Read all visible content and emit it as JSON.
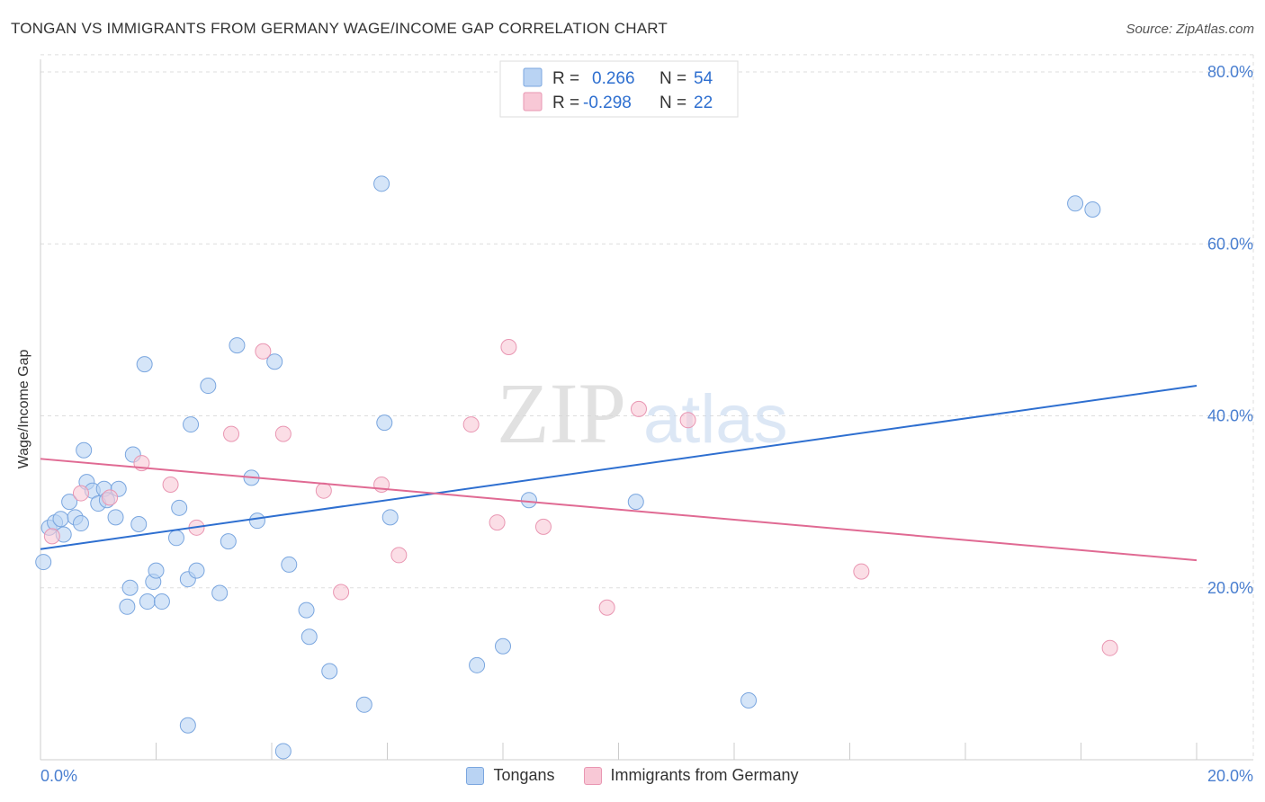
{
  "title": "TONGAN VS IMMIGRANTS FROM GERMANY WAGE/INCOME GAP CORRELATION CHART",
  "source": "Source: ZipAtlas.com",
  "watermark": {
    "zip": "ZIP",
    "atlas": "atlas"
  },
  "colors": {
    "blue_fill": "#b9d3f3",
    "blue_stroke": "#7aa6df",
    "blue_line": "#2e6fd0",
    "pink_fill": "#f8c8d6",
    "pink_stroke": "#e996b2",
    "pink_line": "#e06a93",
    "grid": "#dddddd",
    "axis_label": "#4a7fd0"
  },
  "stats_legend": [
    {
      "r_label": "R =",
      "r_value": "0.266",
      "n_label": "N =",
      "n_value": "54",
      "series": "Tongans"
    },
    {
      "r_label": "R =",
      "r_value": "-0.298",
      "n_label": "N =",
      "n_value": "22",
      "series": "Immigrants from Germany"
    }
  ],
  "chart_data": {
    "type": "scatter",
    "title": "TONGAN VS IMMIGRANTS FROM GERMANY WAGE/INCOME GAP CORRELATION CHART",
    "xlabel": "",
    "ylabel": "Wage/Income Gap",
    "xlim": [
      0,
      20
    ],
    "ylim": [
      0,
      82
    ],
    "x_tick_labels": [
      {
        "value": 0,
        "label": "0.0%"
      },
      {
        "value": 20,
        "label": "20.0%"
      }
    ],
    "y_tick_labels": [
      {
        "value": 20,
        "label": "20.0%"
      },
      {
        "value": 40,
        "label": "40.0%"
      },
      {
        "value": 60,
        "label": "60.0%"
      },
      {
        "value": 80,
        "label": "80.0%"
      }
    ],
    "x_minor_ticks": [
      0,
      2,
      4,
      6,
      8,
      10,
      12,
      14,
      16,
      18,
      20
    ],
    "grid": true,
    "legend_position": "bottom",
    "series": [
      {
        "name": "Tongans",
        "color": "#b9d3f3",
        "trend": {
          "x": [
            0,
            20
          ],
          "y": [
            24.5,
            43.5
          ]
        },
        "points": [
          [
            0.05,
            23.0
          ],
          [
            0.15,
            27.0
          ],
          [
            0.25,
            27.6
          ],
          [
            0.35,
            28.0
          ],
          [
            0.4,
            26.2
          ],
          [
            0.5,
            30.0
          ],
          [
            0.6,
            28.2
          ],
          [
            0.7,
            27.5
          ],
          [
            0.75,
            36.0
          ],
          [
            0.8,
            32.3
          ],
          [
            0.9,
            31.3
          ],
          [
            1.0,
            29.8
          ],
          [
            1.1,
            31.5
          ],
          [
            1.15,
            30.2
          ],
          [
            1.3,
            28.2
          ],
          [
            1.35,
            31.5
          ],
          [
            1.5,
            17.8
          ],
          [
            1.55,
            20.0
          ],
          [
            1.6,
            35.5
          ],
          [
            1.7,
            27.4
          ],
          [
            1.8,
            46.0
          ],
          [
            1.85,
            18.4
          ],
          [
            1.95,
            20.7
          ],
          [
            2.0,
            22.0
          ],
          [
            2.1,
            18.4
          ],
          [
            2.35,
            25.8
          ],
          [
            2.4,
            29.3
          ],
          [
            2.55,
            21.0
          ],
          [
            2.55,
            4.0
          ],
          [
            2.6,
            39.0
          ],
          [
            2.7,
            22.0
          ],
          [
            2.9,
            43.5
          ],
          [
            3.1,
            19.4
          ],
          [
            3.25,
            25.4
          ],
          [
            3.4,
            48.2
          ],
          [
            3.65,
            32.8
          ],
          [
            3.75,
            27.8
          ],
          [
            4.05,
            46.3
          ],
          [
            4.2,
            1.0
          ],
          [
            4.3,
            22.7
          ],
          [
            4.6,
            17.4
          ],
          [
            4.65,
            14.3
          ],
          [
            5.0,
            10.3
          ],
          [
            5.6,
            6.4
          ],
          [
            5.9,
            67.0
          ],
          [
            5.95,
            39.2
          ],
          [
            6.05,
            28.2
          ],
          [
            7.55,
            11.0
          ],
          [
            8.0,
            13.2
          ],
          [
            8.45,
            30.2
          ],
          [
            10.3,
            30.0
          ],
          [
            12.25,
            6.9
          ],
          [
            17.9,
            64.7
          ],
          [
            18.2,
            64.0
          ]
        ]
      },
      {
        "name": "Immigrants from Germany",
        "color": "#f8c8d6",
        "trend": {
          "x": [
            0,
            20
          ],
          "y": [
            35.0,
            23.2
          ]
        },
        "points": [
          [
            0.2,
            26.0
          ],
          [
            0.7,
            31.0
          ],
          [
            1.2,
            30.5
          ],
          [
            1.75,
            34.5
          ],
          [
            2.25,
            32.0
          ],
          [
            2.7,
            27.0
          ],
          [
            3.3,
            37.9
          ],
          [
            3.85,
            47.5
          ],
          [
            4.2,
            37.9
          ],
          [
            4.9,
            31.3
          ],
          [
            5.2,
            19.5
          ],
          [
            5.9,
            32.0
          ],
          [
            6.2,
            23.8
          ],
          [
            7.45,
            39.0
          ],
          [
            7.9,
            27.6
          ],
          [
            8.1,
            48.0
          ],
          [
            8.7,
            27.1
          ],
          [
            9.8,
            17.7
          ],
          [
            10.35,
            40.8
          ],
          [
            11.2,
            39.5
          ],
          [
            14.2,
            21.9
          ],
          [
            18.5,
            13.0
          ]
        ]
      }
    ]
  }
}
